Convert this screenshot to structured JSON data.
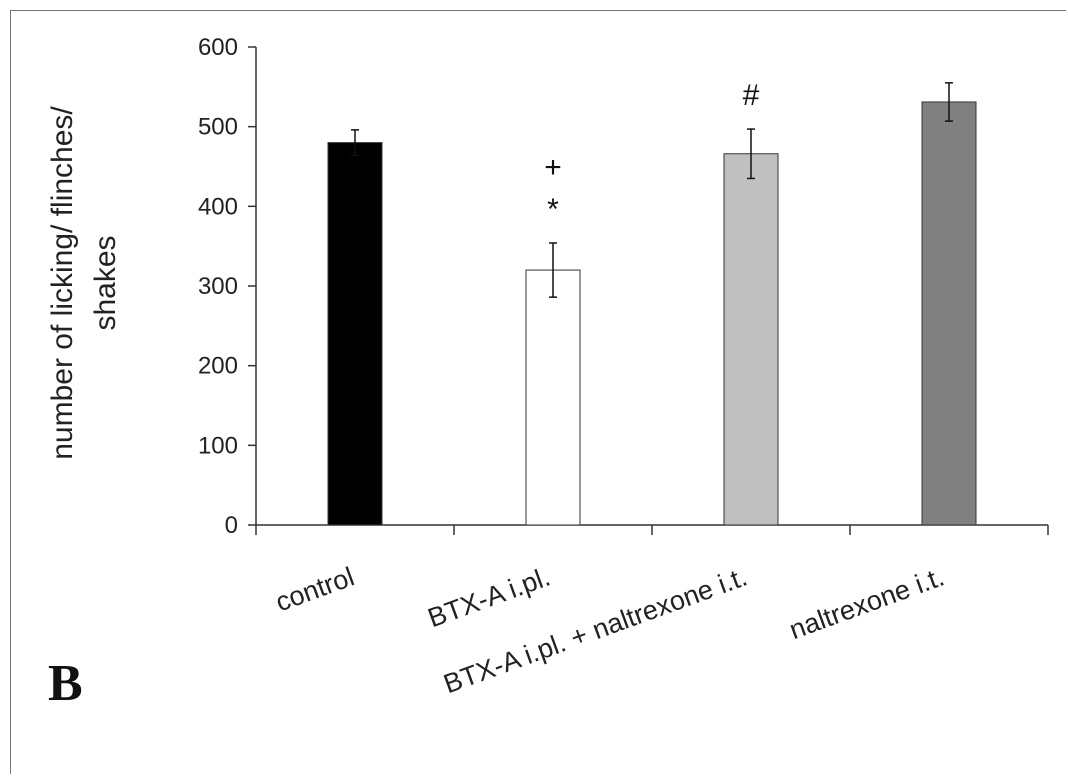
{
  "panel_label": "B",
  "chart_data": {
    "type": "bar",
    "categories": [
      "control",
      "BTX-A i.pl.",
      "BTX-A i.pl. + naltrexone i.t.",
      "naltrexone i.t."
    ],
    "values": [
      480,
      320,
      466,
      531
    ],
    "errors": [
      16,
      34,
      31,
      24
    ],
    "colors": [
      "#000000",
      "#ffffff",
      "#c0c0c0",
      "#808080"
    ],
    "ylabel_lines": [
      "number of licking/ flinches/",
      "shakes"
    ],
    "ylim": [
      0,
      600
    ],
    "yticks": [
      0,
      100,
      200,
      300,
      400,
      500,
      600
    ],
    "annotations": [
      {
        "category_index": 1,
        "lines": [
          "+",
          "*"
        ]
      },
      {
        "category_index": 2,
        "lines": [
          "#"
        ]
      }
    ],
    "grid": false,
    "legend": "none"
  }
}
